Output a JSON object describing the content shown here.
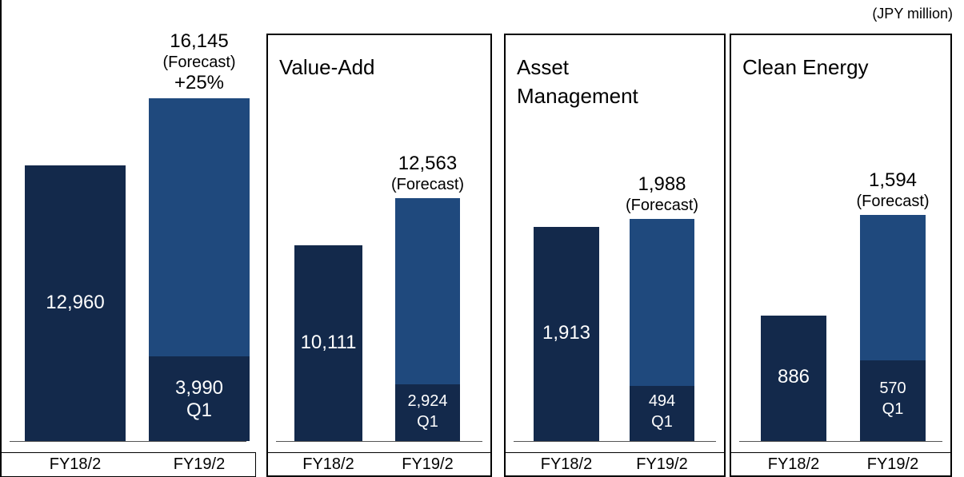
{
  "note": "(JPY million)",
  "chart_data": [
    {
      "type": "bar",
      "categories": [
        "FY18/2",
        "FY19/2"
      ],
      "values": [
        12960,
        16145
      ],
      "value_labels": [
        "12,960",
        "16,145"
      ],
      "forecast_label": "(Forecast)",
      "annotation": "+25%",
      "q1": {
        "label": "Q1",
        "value": 3990,
        "value_label": "3,990"
      },
      "colors": [
        "#13294b",
        "#1f497d"
      ],
      "ylim": [
        0,
        20000
      ]
    },
    {
      "type": "bar",
      "title": "Value-Add",
      "categories": [
        "FY18/2",
        "FY19/2"
      ],
      "values": [
        10111,
        12563
      ],
      "value_labels": [
        "10,111",
        "12,563"
      ],
      "forecast_label": "(Forecast)",
      "q1": {
        "label": "Q1",
        "value": 2924,
        "value_label": "2,924"
      },
      "colors": [
        "#13294b",
        "#1f497d"
      ],
      "ylim": [
        0,
        22000
      ]
    },
    {
      "type": "bar",
      "title": "Asset Management",
      "categories": [
        "FY18/2",
        "FY19/2"
      ],
      "values": [
        1913,
        1988
      ],
      "value_labels": [
        "1,913",
        "1,988"
      ],
      "forecast_label": "(Forecast)",
      "q1": {
        "label": "Q1",
        "value": 494
      },
      "colors": [
        "#13294b",
        "#1f497d"
      ],
      "ylim": [
        0,
        3800
      ]
    },
    {
      "type": "bar",
      "title": "Clean Energy",
      "categories": [
        "FY18/2",
        "FY19/2"
      ],
      "values": [
        886,
        1594
      ],
      "value_labels": [
        "886",
        "1,594"
      ],
      "forecast_label": "(Forecast)",
      "q1": {
        "label": "Q1",
        "value": 570
      },
      "colors": [
        "#13294b",
        "#1f497d"
      ],
      "ylim": [
        0,
        3000
      ]
    }
  ]
}
